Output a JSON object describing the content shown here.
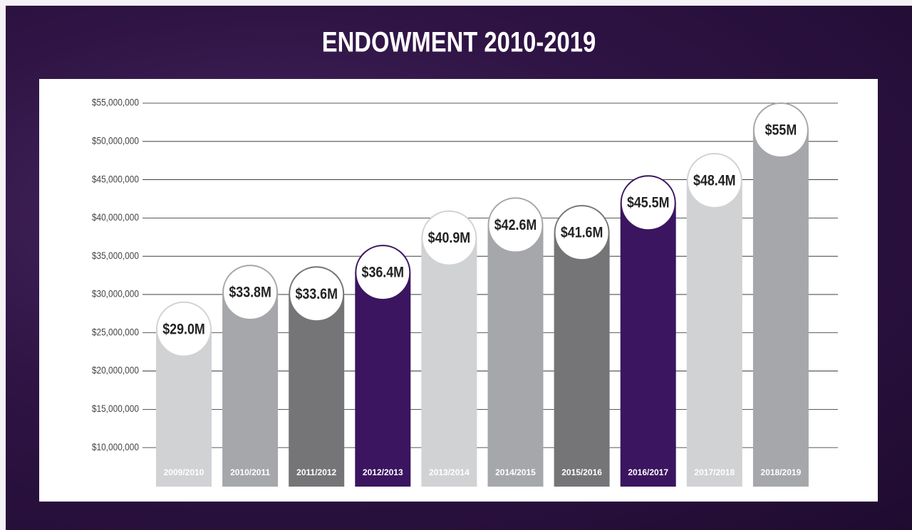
{
  "chart_data": {
    "type": "bar",
    "title": "ENDOWMENT 2010-2019",
    "categories": [
      "2009/2010",
      "2010/2011",
      "2011/2012",
      "2012/2013",
      "2013/2014",
      "2014/2015",
      "2015/2016",
      "2016/2017",
      "2017/2018",
      "2018/2019"
    ],
    "values": [
      29000000,
      33800000,
      33600000,
      36400000,
      40900000,
      42600000,
      41600000,
      45500000,
      48400000,
      55000000
    ],
    "value_labels": [
      "$29.0M",
      "$33.8M",
      "$33.6M",
      "$36.4M",
      "$40.9M",
      "$42.6M",
      "$41.6M",
      "$45.5M",
      "$48.4M",
      "$55M"
    ],
    "colors": [
      "#d1d2d4",
      "#a6a7aa",
      "#757577",
      "#3b1560",
      "#d1d2d4",
      "#a6a7aa",
      "#757577",
      "#3b1560",
      "#d1d2d4",
      "#a6a7aa"
    ],
    "ylim": [
      4900000,
      55000000
    ],
    "yticks": [
      {
        "value": 10000000,
        "label": "$10,000,000"
      },
      {
        "value": 15000000,
        "label": "$15,000,000"
      },
      {
        "value": 20000000,
        "label": "$20,000,000"
      },
      {
        "value": 25000000,
        "label": "$25,000,000"
      },
      {
        "value": 30000000,
        "label": "$30,000,000"
      },
      {
        "value": 35000000,
        "label": "$35,000,000"
      },
      {
        "value": 40000000,
        "label": "$40,000,000"
      },
      {
        "value": 45000000,
        "label": "$45,000,000"
      },
      {
        "value": 50000000,
        "label": "$50,000,000"
      },
      {
        "value": 55000000,
        "label": "$55,000,000"
      }
    ],
    "grid": true
  }
}
